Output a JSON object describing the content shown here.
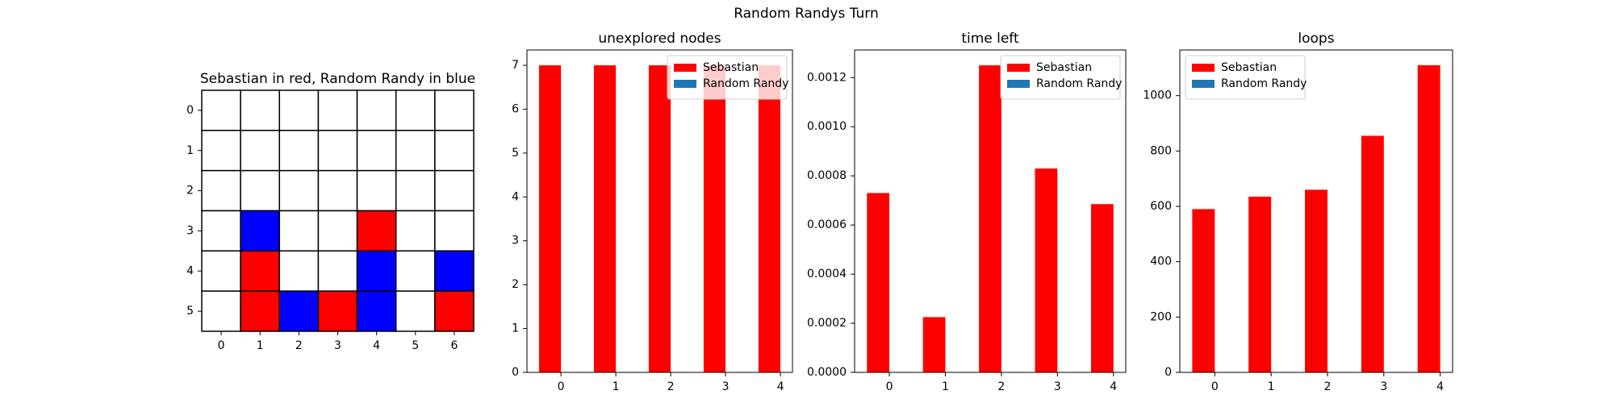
{
  "title": "Random Randys Turn",
  "chart_data": [
    {
      "type": "grid",
      "title": "Sebastian in red, Random Randy in blue",
      "xticks": [
        0,
        1,
        2,
        3,
        4,
        5,
        6
      ],
      "yticks": [
        0,
        1,
        2,
        3,
        4,
        5
      ],
      "xlim": [
        -0.5,
        6.5
      ],
      "ylim": [
        5.5,
        -0.5
      ],
      "colors": [
        "#ffffff",
        "#ff0000",
        "#0000ff"
      ],
      "cells": [
        [
          0,
          0,
          0,
          0,
          0,
          0,
          0
        ],
        [
          0,
          0,
          0,
          0,
          0,
          0,
          0
        ],
        [
          0,
          0,
          0,
          0,
          0,
          0,
          0
        ],
        [
          0,
          2,
          0,
          0,
          1,
          0,
          0
        ],
        [
          0,
          1,
          0,
          0,
          2,
          0,
          2
        ],
        [
          0,
          1,
          2,
          1,
          2,
          0,
          1
        ]
      ]
    },
    {
      "type": "bar",
      "title": "unexplored nodes",
      "categories": [
        "0",
        "1",
        "2",
        "3",
        "4"
      ],
      "series": [
        {
          "name": "Sebastian",
          "color": "#ff0000",
          "values": [
            7,
            7,
            7,
            7,
            7
          ]
        },
        {
          "name": "Random Randy",
          "color": "#1f77b4",
          "values": [
            0,
            0,
            0,
            0,
            0
          ]
        }
      ],
      "xlim": [
        -0.62,
        4.22
      ],
      "ylim": [
        0,
        7.35
      ],
      "yticks": [
        0,
        1,
        2,
        3,
        4,
        5,
        6,
        7
      ],
      "legend": "upper right"
    },
    {
      "type": "bar",
      "title": "time left",
      "categories": [
        "0",
        "1",
        "2",
        "3",
        "4"
      ],
      "series": [
        {
          "name": "Sebastian",
          "color": "#ff0000",
          "values": [
            0.00073,
            0.000225,
            0.00125,
            0.00083,
            0.000685
          ]
        },
        {
          "name": "Random Randy",
          "color": "#1f77b4",
          "values": [
            0,
            0,
            0,
            0,
            0
          ]
        }
      ],
      "xlim": [
        -0.62,
        4.22
      ],
      "ylim": [
        0,
        0.0013125
      ],
      "yticks": [
        {
          "value": 0,
          "label": "0.0000"
        },
        {
          "value": 0.0002,
          "label": "0.0002"
        },
        {
          "value": 0.0004,
          "label": "0.0004"
        },
        {
          "value": 0.0006,
          "label": "0.0006"
        },
        {
          "value": 0.0008,
          "label": "0.0008"
        },
        {
          "value": 0.001,
          "label": "0.0010"
        },
        {
          "value": 0.0012,
          "label": "0.0012"
        }
      ],
      "legend": "upper right"
    },
    {
      "type": "bar",
      "title": "loops",
      "categories": [
        "0",
        "1",
        "2",
        "3",
        "4"
      ],
      "series": [
        {
          "name": "Sebastian",
          "color": "#ff0000",
          "values": [
            590,
            635,
            660,
            855,
            1110
          ]
        },
        {
          "name": "Random Randy",
          "color": "#1f77b4",
          "values": [
            0,
            0,
            0,
            0,
            0
          ]
        }
      ],
      "xlim": [
        -0.62,
        4.22
      ],
      "ylim": [
        0,
        1165
      ],
      "yticks": [
        0,
        200,
        400,
        600,
        800,
        1000
      ],
      "legend": "upper left"
    }
  ]
}
